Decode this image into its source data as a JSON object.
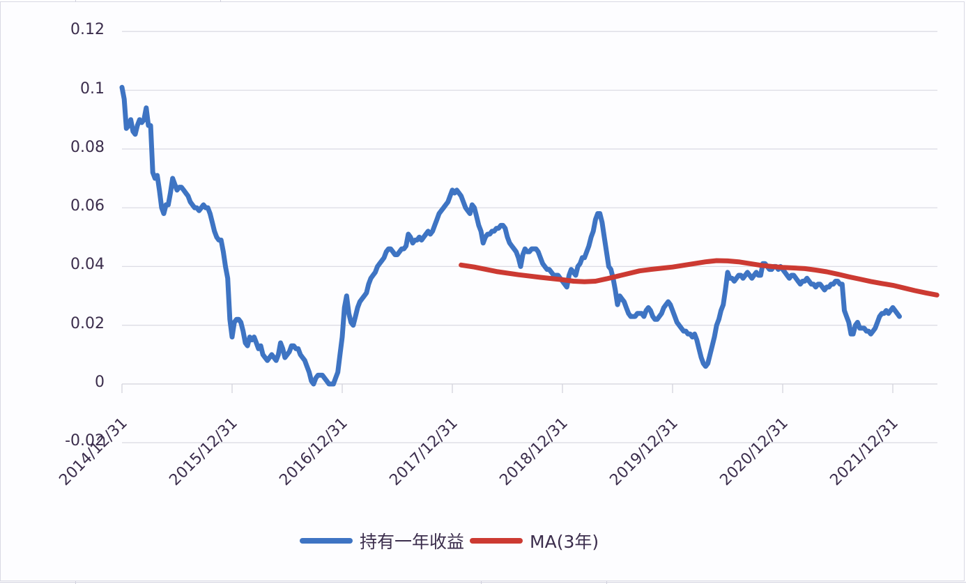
{
  "chart_data": {
    "type": "line",
    "title": "",
    "xlabel": "",
    "ylabel": "",
    "ylim": [
      -0.02,
      0.12
    ],
    "yticks": [
      "0.12",
      "0.1",
      "0.08",
      "0.06",
      "0.04",
      "0.02",
      "0",
      "-0.02"
    ],
    "ytick_values": [
      0.12,
      0.1,
      0.08,
      0.06,
      0.04,
      0.02,
      0,
      -0.02
    ],
    "x_categories": [
      "2014/12/31",
      "2015/12/31",
      "2016/12/31",
      "2017/12/31",
      "2018/12/31",
      "2019/12/31",
      "2020/12/31",
      "2021/12/31"
    ],
    "grid": true,
    "legend_position": "bottom",
    "series": [
      {
        "name": "持有一年收益",
        "color": "#3e74c3",
        "x_years_from_2014_12_31": [
          0.0,
          0.02,
          0.04,
          0.06,
          0.08,
          0.1,
          0.12,
          0.14,
          0.16,
          0.18,
          0.2,
          0.22,
          0.24,
          0.26,
          0.28,
          0.3,
          0.32,
          0.34,
          0.36,
          0.38,
          0.4,
          0.42,
          0.44,
          0.46,
          0.48,
          0.5,
          0.52,
          0.54,
          0.56,
          0.58,
          0.6,
          0.62,
          0.64,
          0.66,
          0.68,
          0.7,
          0.72,
          0.74,
          0.76,
          0.78,
          0.8,
          0.82,
          0.84,
          0.86,
          0.88,
          0.9,
          0.92,
          0.94,
          0.96,
          0.98,
          1.0,
          1.02,
          1.04,
          1.06,
          1.08,
          1.1,
          1.12,
          1.14,
          1.16,
          1.18,
          1.2,
          1.22,
          1.24,
          1.26,
          1.28,
          1.3,
          1.32,
          1.34,
          1.36,
          1.38,
          1.4,
          1.42,
          1.44,
          1.46,
          1.48,
          1.5,
          1.52,
          1.54,
          1.56,
          1.58,
          1.6,
          1.62,
          1.64,
          1.66,
          1.68,
          1.7,
          1.72,
          1.74,
          1.76,
          1.78,
          1.8,
          1.82,
          1.84,
          1.86,
          1.88,
          1.9,
          1.92,
          1.94,
          1.96,
          1.98,
          2.0,
          2.02,
          2.04,
          2.06,
          2.08,
          2.1,
          2.12,
          2.14,
          2.16,
          2.18,
          2.2,
          2.22,
          2.24,
          2.26,
          2.28,
          2.3,
          2.32,
          2.34,
          2.36,
          2.38,
          2.4,
          2.42,
          2.44,
          2.46,
          2.48,
          2.5,
          2.52,
          2.54,
          2.56,
          2.58,
          2.6,
          2.62,
          2.64,
          2.66,
          2.68,
          2.7,
          2.72,
          2.74,
          2.76,
          2.78,
          2.8,
          2.82,
          2.84,
          2.86,
          2.88,
          2.9,
          2.92,
          2.94,
          2.96,
          2.98,
          3.0,
          3.02,
          3.04,
          3.06,
          3.08,
          3.1,
          3.12,
          3.14,
          3.16,
          3.18,
          3.2,
          3.22,
          3.24,
          3.26,
          3.28,
          3.3,
          3.32,
          3.34,
          3.36,
          3.38,
          3.4,
          3.42,
          3.44,
          3.46,
          3.48,
          3.5,
          3.52,
          3.54,
          3.56,
          3.58,
          3.6,
          3.62,
          3.64,
          3.66,
          3.68,
          3.7,
          3.72,
          3.74,
          3.76,
          3.78,
          3.8,
          3.82,
          3.84,
          3.86,
          3.88,
          3.9,
          3.92,
          3.94,
          3.96,
          3.98,
          4.0,
          4.02,
          4.04,
          4.06,
          4.08,
          4.1,
          4.12,
          4.14,
          4.16,
          4.18,
          4.2,
          4.22,
          4.24,
          4.26,
          4.28,
          4.3,
          4.32,
          4.34,
          4.36,
          4.38,
          4.4,
          4.42,
          4.44,
          4.46,
          4.48,
          4.5,
          4.52,
          4.54,
          4.56,
          4.58,
          4.6,
          4.62,
          4.64,
          4.66,
          4.68,
          4.7,
          4.72,
          4.74,
          4.76,
          4.78,
          4.8,
          4.82,
          4.84,
          4.86,
          4.88,
          4.9,
          4.92,
          4.94,
          4.96,
          4.98,
          5.0,
          5.02,
          5.04,
          5.06,
          5.08,
          5.1,
          5.12,
          5.14,
          5.16,
          5.18,
          5.2,
          5.22,
          5.24,
          5.26,
          5.28,
          5.3,
          5.32,
          5.34,
          5.36,
          5.38,
          5.4,
          5.42,
          5.44,
          5.46,
          5.48,
          5.5,
          5.52,
          5.54,
          5.56,
          5.58,
          5.6,
          5.62,
          5.64,
          5.66,
          5.68,
          5.7,
          5.72,
          5.74,
          5.76,
          5.78,
          5.8,
          5.82,
          5.84,
          5.86,
          5.88,
          5.9,
          5.92,
          5.94,
          5.96,
          5.98,
          6.0,
          6.02,
          6.04,
          6.06,
          6.08,
          6.1,
          6.12,
          6.14,
          6.16,
          6.18,
          6.2,
          6.22,
          6.24,
          6.26,
          6.28,
          6.3,
          6.32,
          6.34,
          6.36,
          6.38,
          6.4,
          6.42,
          6.44,
          6.46,
          6.48,
          6.5,
          6.52,
          6.54,
          6.56,
          6.58,
          6.6,
          6.62,
          6.64,
          6.66,
          6.68,
          6.7,
          6.72,
          6.74,
          6.76,
          6.78,
          6.8,
          6.82,
          6.84,
          6.86,
          6.88,
          6.9,
          6.92,
          6.94,
          6.96,
          6.98,
          7.0,
          7.02,
          7.04,
          7.06,
          7.08,
          7.1,
          7.12,
          7.14,
          7.16,
          7.18,
          7.2,
          7.22,
          7.24,
          7.26,
          7.28,
          7.3,
          7.32,
          7.34,
          7.36,
          7.38,
          7.4
        ],
        "values": [
          0.101,
          0.097,
          0.087,
          0.088,
          0.09,
          0.086,
          0.085,
          0.088,
          0.09,
          0.089,
          0.09,
          0.094,
          0.088,
          0.088,
          0.072,
          0.07,
          0.071,
          0.066,
          0.06,
          0.058,
          0.061,
          0.061,
          0.065,
          0.07,
          0.068,
          0.066,
          0.067,
          0.067,
          0.066,
          0.065,
          0.064,
          0.062,
          0.061,
          0.06,
          0.06,
          0.059,
          0.06,
          0.061,
          0.06,
          0.06,
          0.058,
          0.055,
          0.052,
          0.05,
          0.049,
          0.049,
          0.045,
          0.04,
          0.036,
          0.022,
          0.016,
          0.021,
          0.022,
          0.022,
          0.021,
          0.018,
          0.014,
          0.013,
          0.016,
          0.015,
          0.016,
          0.014,
          0.012,
          0.013,
          0.01,
          0.009,
          0.008,
          0.009,
          0.01,
          0.009,
          0.008,
          0.01,
          0.014,
          0.012,
          0.009,
          0.01,
          0.011,
          0.013,
          0.013,
          0.012,
          0.012,
          0.01,
          0.009,
          0.008,
          0.006,
          0.004,
          0.001,
          0.0,
          0.002,
          0.003,
          0.003,
          0.003,
          0.002,
          0.001,
          0.0,
          0.0,
          0.0,
          0.002,
          0.004,
          0.01,
          0.016,
          0.026,
          0.03,
          0.024,
          0.021,
          0.02,
          0.023,
          0.026,
          0.028,
          0.029,
          0.03,
          0.031,
          0.034,
          0.036,
          0.037,
          0.038,
          0.04,
          0.041,
          0.042,
          0.043,
          0.045,
          0.046,
          0.046,
          0.045,
          0.044,
          0.044,
          0.045,
          0.046,
          0.046,
          0.047,
          0.051,
          0.05,
          0.048,
          0.049,
          0.049,
          0.05,
          0.049,
          0.05,
          0.051,
          0.052,
          0.051,
          0.052,
          0.054,
          0.056,
          0.058,
          0.059,
          0.06,
          0.061,
          0.062,
          0.064,
          0.066,
          0.065,
          0.066,
          0.065,
          0.064,
          0.062,
          0.06,
          0.059,
          0.058,
          0.061,
          0.06,
          0.057,
          0.054,
          0.052,
          0.048,
          0.05,
          0.051,
          0.051,
          0.052,
          0.052,
          0.053,
          0.053,
          0.054,
          0.054,
          0.053,
          0.05,
          0.048,
          0.047,
          0.046,
          0.045,
          0.043,
          0.04,
          0.044,
          0.046,
          0.045,
          0.045,
          0.046,
          0.046,
          0.046,
          0.045,
          0.043,
          0.041,
          0.04,
          0.039,
          0.039,
          0.038,
          0.037,
          0.037,
          0.037,
          0.036,
          0.035,
          0.034,
          0.033,
          0.037,
          0.039,
          0.038,
          0.037,
          0.04,
          0.041,
          0.043,
          0.043,
          0.045,
          0.047,
          0.05,
          0.052,
          0.056,
          0.058,
          0.058,
          0.055,
          0.05,
          0.045,
          0.04,
          0.039,
          0.036,
          0.032,
          0.027,
          0.03,
          0.029,
          0.028,
          0.026,
          0.024,
          0.023,
          0.023,
          0.023,
          0.024,
          0.024,
          0.024,
          0.023,
          0.025,
          0.026,
          0.025,
          0.023,
          0.022,
          0.022,
          0.023,
          0.024,
          0.026,
          0.027,
          0.028,
          0.027,
          0.025,
          0.023,
          0.021,
          0.02,
          0.019,
          0.018,
          0.018,
          0.017,
          0.017,
          0.016,
          0.017,
          0.015,
          0.012,
          0.009,
          0.007,
          0.006,
          0.007,
          0.01,
          0.013,
          0.016,
          0.02,
          0.022,
          0.025,
          0.027,
          0.032,
          0.038,
          0.036,
          0.036,
          0.035,
          0.036,
          0.037,
          0.037,
          0.036,
          0.037,
          0.038,
          0.037,
          0.036,
          0.037,
          0.038,
          0.037,
          0.037,
          0.041,
          0.041,
          0.04,
          0.039,
          0.039,
          0.04,
          0.04,
          0.039,
          0.04,
          0.039,
          0.038,
          0.037,
          0.036,
          0.037,
          0.037,
          0.036,
          0.035,
          0.034,
          0.035,
          0.035,
          0.036,
          0.035,
          0.034,
          0.034,
          0.033,
          0.034,
          0.034,
          0.033,
          0.032,
          0.033,
          0.033,
          0.034,
          0.034,
          0.035,
          0.035,
          0.034,
          0.034,
          0.025,
          0.023,
          0.021,
          0.017,
          0.017,
          0.02,
          0.021,
          0.019,
          0.019,
          0.019,
          0.018,
          0.018,
          0.017,
          0.018,
          0.019,
          0.021,
          0.023,
          0.024,
          0.024,
          0.025,
          0.024,
          0.025,
          0.026,
          0.025,
          0.024,
          0.023
        ]
      },
      {
        "name": "MA(3年)",
        "color": "#cc3a32",
        "x_years_from_2014_12_31": [
          3.08,
          3.2,
          3.4,
          3.6,
          3.8,
          4.0,
          4.1,
          4.2,
          4.3,
          4.4,
          4.5,
          4.6,
          4.7,
          4.8,
          4.9,
          5.0,
          5.1,
          5.2,
          5.3,
          5.4,
          5.5,
          5.6,
          5.7,
          5.8,
          5.9,
          6.0,
          6.1,
          6.2,
          6.3,
          6.4,
          6.5,
          6.6,
          6.7,
          6.8,
          6.9,
          7.0,
          7.1,
          7.2,
          7.3,
          7.4
        ],
        "values": [
          0.0405,
          0.0398,
          0.0383,
          0.0372,
          0.0363,
          0.0355,
          0.035,
          0.0348,
          0.035,
          0.0358,
          0.0367,
          0.0376,
          0.0385,
          0.039,
          0.0394,
          0.0398,
          0.0404,
          0.041,
          0.0416,
          0.042,
          0.0419,
          0.0416,
          0.041,
          0.0404,
          0.04,
          0.0397,
          0.0395,
          0.0393,
          0.0388,
          0.0382,
          0.0374,
          0.0365,
          0.0357,
          0.0349,
          0.0342,
          0.0336,
          0.0327,
          0.0318,
          0.031,
          0.0303
        ]
      }
    ]
  },
  "legend": {
    "items": [
      {
        "label": "持有一年收益",
        "color": "#3e74c3"
      },
      {
        "label": "MA(3年)",
        "color": "#cc3a32"
      }
    ]
  }
}
